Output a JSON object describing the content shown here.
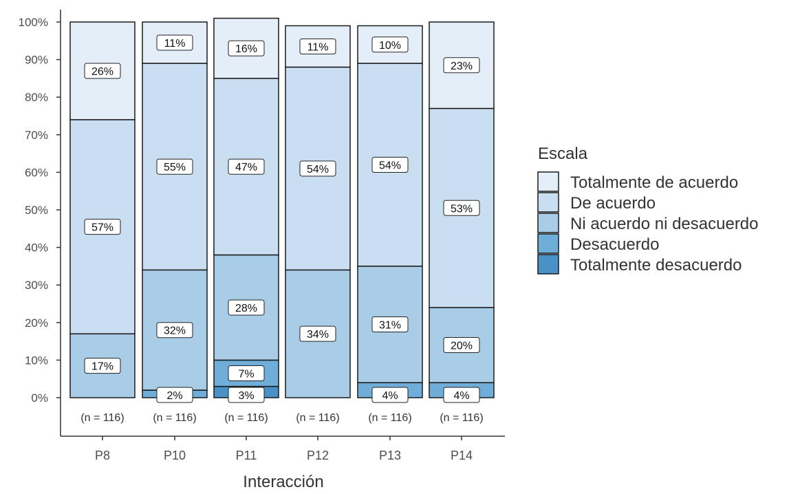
{
  "chart_data": {
    "type": "bar",
    "stacked": true,
    "percent": true,
    "categories": [
      "P8",
      "P10",
      "P11",
      "P12",
      "P13",
      "P14"
    ],
    "n_labels": [
      "(n = 116)",
      "(n = 116)",
      "(n = 116)",
      "(n = 116)",
      "(n = 116)",
      "(n = 116)"
    ],
    "series": [
      {
        "name": "Totalmente desacuerdo",
        "color": "#4a92c6",
        "values": [
          0,
          0,
          3,
          0,
          0,
          0
        ],
        "labels": [
          "",
          "",
          "3%",
          "",
          "",
          ""
        ]
      },
      {
        "name": "Desacuerdo",
        "color": "#6eaed8",
        "values": [
          0,
          2,
          7,
          0,
          4,
          4
        ],
        "labels": [
          "",
          "2%",
          "7%",
          "",
          "4%",
          "4%"
        ]
      },
      {
        "name": "Ni acuerdo ni desacuerdo",
        "color": "#a9cde6",
        "values": [
          17,
          32,
          28,
          34,
          31,
          20
        ],
        "labels": [
          "17%",
          "32%",
          "28%",
          "34%",
          "31%",
          "20%"
        ]
      },
      {
        "name": "De acuerdo",
        "color": "#c9def1",
        "values": [
          57,
          55,
          47,
          54,
          54,
          53
        ],
        "labels": [
          "57%",
          "55%",
          "47%",
          "54%",
          "54%",
          "53%"
        ]
      },
      {
        "name": "Totalmente de acuerdo",
        "color": "#e4eef9",
        "values": [
          26,
          11,
          16,
          11,
          10,
          23
        ],
        "labels": [
          "26%",
          "11%",
          "16%",
          "11%",
          "10%",
          "23%"
        ]
      }
    ],
    "xlabel": "Interacción",
    "ylabel": "",
    "ylim": [
      0,
      100
    ],
    "yticks": [
      "0%",
      "10%",
      "20%",
      "30%",
      "40%",
      "50%",
      "60%",
      "70%",
      "80%",
      "90%",
      "100%"
    ],
    "grid": false,
    "legend": {
      "title": "Escala",
      "position": "right",
      "items": [
        "Totalmente de acuerdo",
        "De acuerdo",
        "Ni acuerdo ni desacuerdo",
        "Desacuerdo",
        "Totalmente desacuerdo"
      ]
    }
  }
}
